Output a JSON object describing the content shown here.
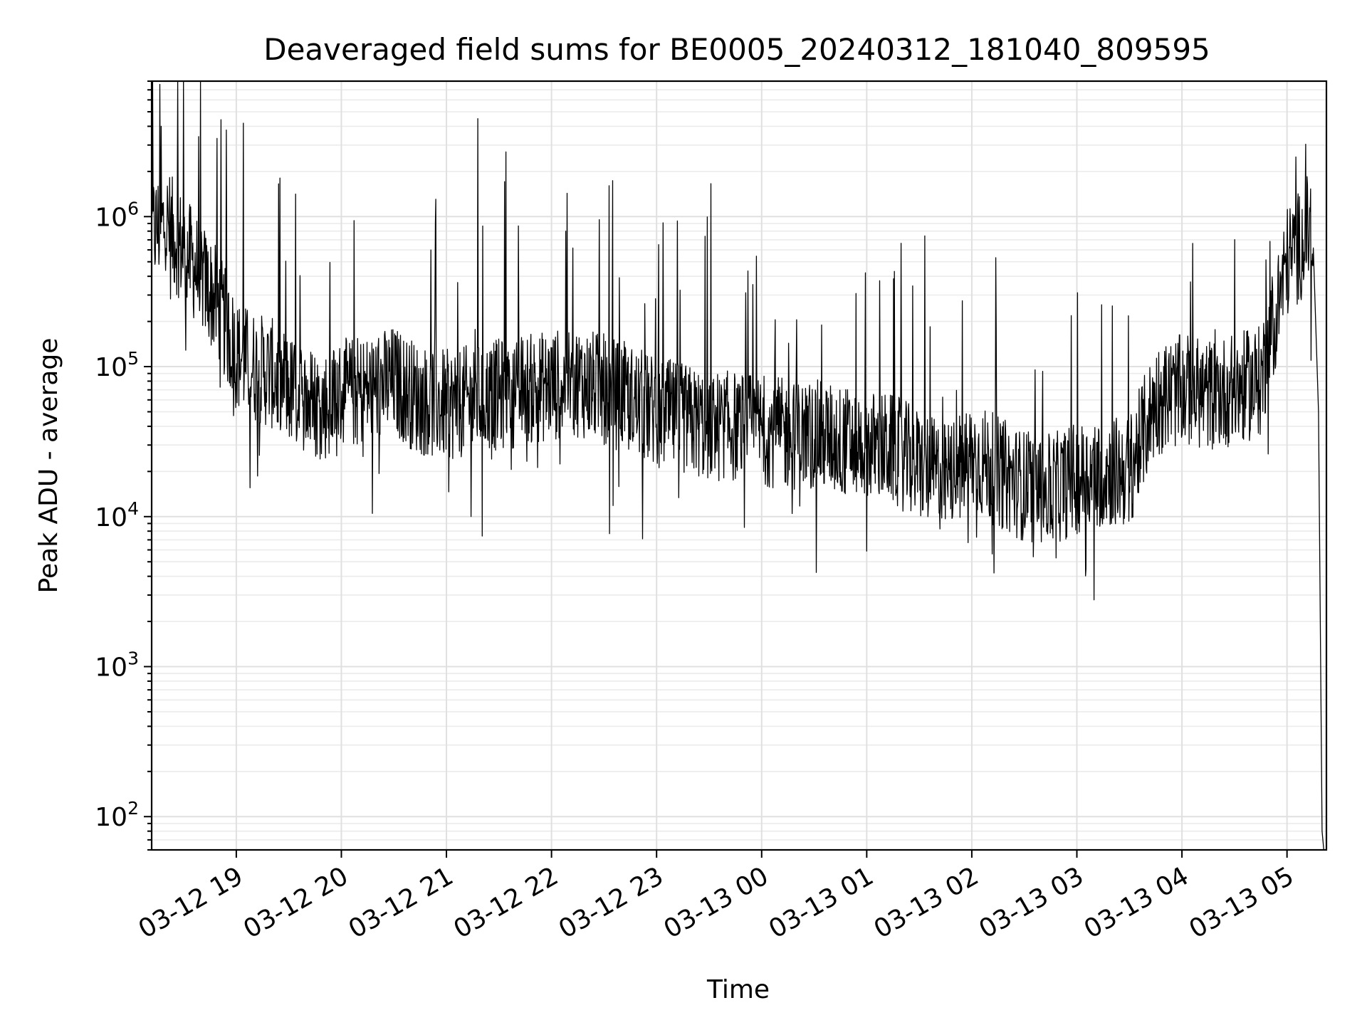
{
  "chart_data": {
    "type": "line",
    "title": "Deaveraged field sums for BE0005_20240312_181040_809595",
    "xlabel": "Time",
    "ylabel": "Peak ADU - average",
    "y_scale": "log",
    "ylim": [
      60,
      8000000
    ],
    "xlim": [
      "2024-03-12 18:11:40",
      "2024-03-13 05:22:30"
    ],
    "grid": "on (major and minor)",
    "legend": "none",
    "line_color": "#000000",
    "x_ticks": [
      {
        "value": "2024-03-12 19:00",
        "label": "03-12 19"
      },
      {
        "value": "2024-03-12 20:00",
        "label": "03-12 20"
      },
      {
        "value": "2024-03-12 21:00",
        "label": "03-12 21"
      },
      {
        "value": "2024-03-12 22:00",
        "label": "03-12 22"
      },
      {
        "value": "2024-03-12 23:00",
        "label": "03-12 23"
      },
      {
        "value": "2024-03-13 00:00",
        "label": "03-13 00"
      },
      {
        "value": "2024-03-13 01:00",
        "label": "03-13 01"
      },
      {
        "value": "2024-03-13 02:00",
        "label": "03-13 02"
      },
      {
        "value": "2024-03-13 03:00",
        "label": "03-13 03"
      },
      {
        "value": "2024-03-13 04:00",
        "label": "03-13 04"
      },
      {
        "value": "2024-03-13 05:00",
        "label": "03-13 05"
      }
    ],
    "y_ticks": [
      {
        "value": 100,
        "base": "10",
        "exp": "2"
      },
      {
        "value": 1000,
        "base": "10",
        "exp": "3"
      },
      {
        "value": 10000,
        "base": "10",
        "exp": "4"
      },
      {
        "value": 100000,
        "base": "10",
        "exp": "5"
      },
      {
        "value": 1000000,
        "base": "10",
        "exp": "6"
      }
    ],
    "series": [
      {
        "x": [
          "2024-03-12 18:12",
          "2024-03-12 18:20",
          "2024-03-12 18:30",
          "2024-03-12 18:40",
          "2024-03-12 18:50",
          "2024-03-12 19:00",
          "2024-03-12 19:10",
          "2024-03-12 19:20",
          "2024-03-12 19:30",
          "2024-03-12 19:40",
          "2024-03-12 19:50",
          "2024-03-12 20:00",
          "2024-03-12 20:15",
          "2024-03-12 20:30",
          "2024-03-12 20:45",
          "2024-03-12 21:00",
          "2024-03-12 21:15",
          "2024-03-12 21:30",
          "2024-03-12 21:45",
          "2024-03-12 22:00",
          "2024-03-12 22:15",
          "2024-03-12 22:30",
          "2024-03-12 22:45",
          "2024-03-12 23:00",
          "2024-03-12 23:15",
          "2024-03-12 23:30",
          "2024-03-12 23:45",
          "2024-03-13 00:00",
          "2024-03-13 00:15",
          "2024-03-13 00:30",
          "2024-03-13 00:45",
          "2024-03-13 01:00",
          "2024-03-13 01:15",
          "2024-03-13 01:30",
          "2024-03-13 01:45",
          "2024-03-13 02:00",
          "2024-03-13 02:15",
          "2024-03-13 02:30",
          "2024-03-13 02:45",
          "2024-03-13 03:00",
          "2024-03-13 03:15",
          "2024-03-13 03:30",
          "2024-03-13 03:45",
          "2024-03-13 04:00",
          "2024-03-13 04:15",
          "2024-03-13 04:30",
          "2024-03-13 04:45",
          "2024-03-13 05:00",
          "2024-03-13 05:10",
          "2024-03-13 05:15",
          "2024-03-13 05:18",
          "2024-03-13 05:20"
        ],
        "y": [
          800000,
          900000,
          600000,
          400000,
          250000,
          120000,
          100000,
          90000,
          70000,
          60000,
          55000,
          65000,
          70000,
          80000,
          60000,
          55000,
          60000,
          65000,
          70000,
          75000,
          80000,
          70000,
          60000,
          50000,
          45000,
          40000,
          40000,
          38000,
          35000,
          35000,
          32000,
          30000,
          28000,
          22000,
          18000,
          25000,
          20000,
          16000,
          15000,
          18000,
          20000,
          20000,
          60000,
          70000,
          65000,
          70000,
          80000,
          500000,
          700000,
          900000,
          50000,
          80
        ]
      }
    ],
    "peaks": [
      {
        "x": "2024-03-12 18:17",
        "y": 4000000
      },
      {
        "x": "2024-03-12 19:04",
        "y": 4200000
      },
      {
        "x": "2024-03-12 21:18",
        "y": 4500000
      },
      {
        "x": "2024-03-12 21:34",
        "y": 2700000
      },
      {
        "x": "2024-03-13 05:05",
        "y": 2500000
      }
    ],
    "troughs": [
      {
        "x": "2024-03-12 22:33",
        "y": 7700
      },
      {
        "x": "2024-03-13 02:35",
        "y": 5400
      },
      {
        "x": "2024-03-13 02:48",
        "y": 5300
      }
    ]
  }
}
